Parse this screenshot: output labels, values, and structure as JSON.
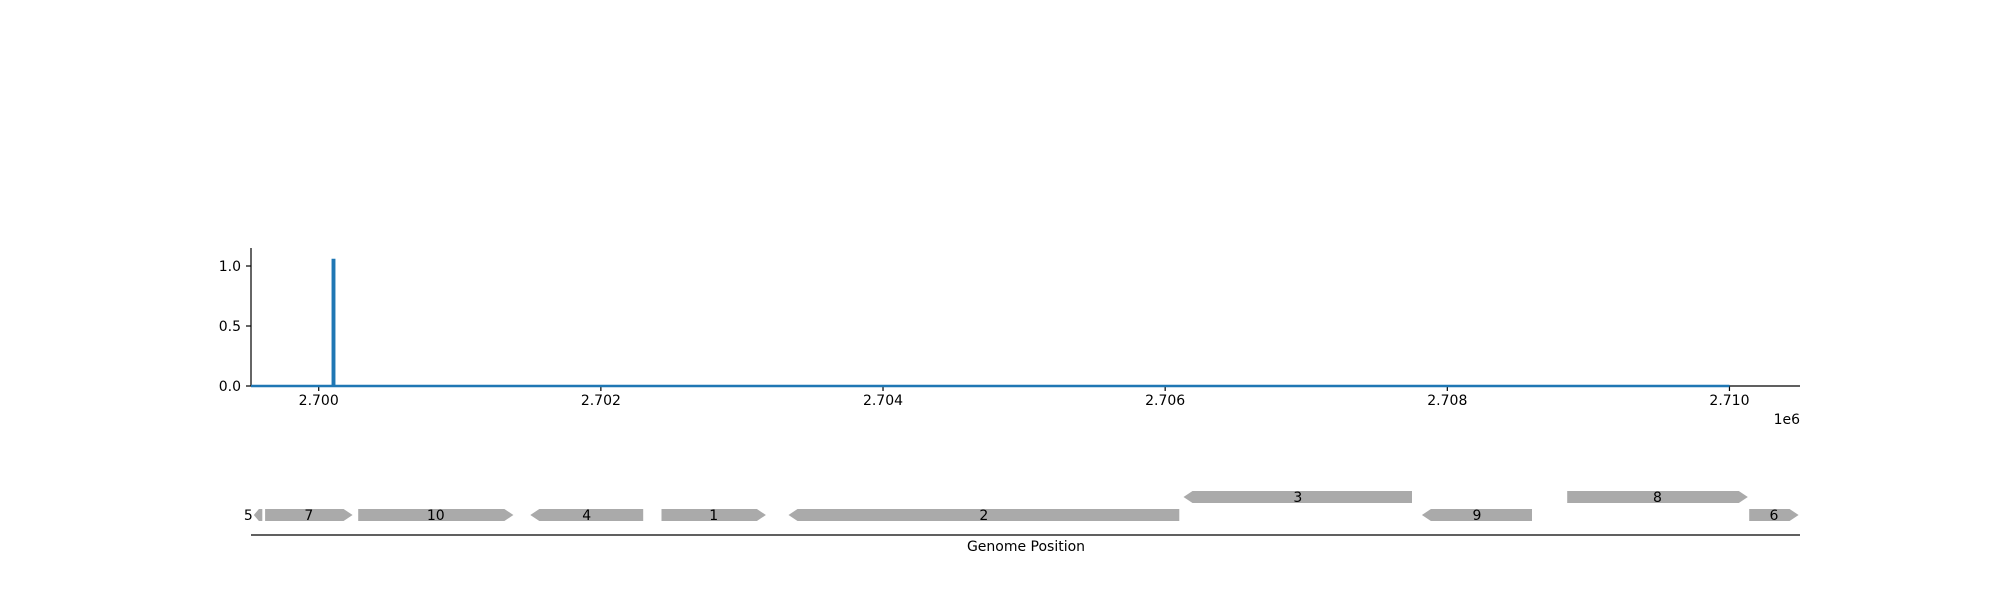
{
  "chart_data": [
    {
      "type": "line",
      "x_offset_label": "1e6",
      "xlim": [
        2699520,
        2710500
      ],
      "ylim": [
        0,
        1.15
      ],
      "x_ticks": [
        {
          "value": 2700000,
          "label": "2.700"
        },
        {
          "value": 2702000,
          "label": "2.702"
        },
        {
          "value": 2704000,
          "label": "2.704"
        },
        {
          "value": 2706000,
          "label": "2.706"
        },
        {
          "value": 2708000,
          "label": "2.708"
        },
        {
          "value": 2710000,
          "label": "2.710"
        }
      ],
      "y_ticks": [
        {
          "value": 0.0,
          "label": "0.0"
        },
        {
          "value": 0.5,
          "label": "0.5"
        },
        {
          "value": 1.0,
          "label": "1.0"
        }
      ],
      "series": [
        {
          "color": "#1f77b4",
          "x": [
            2699520,
            2700100,
            2700100,
            2700110,
            2700110,
            2710000
          ],
          "y": [
            0,
            0,
            1.05,
            1.05,
            0,
            0
          ]
        }
      ],
      "grid": false
    },
    {
      "type": "gene-track",
      "xlabel": "Genome Position",
      "xlim": [
        2699520,
        2710500
      ],
      "gene_color": "#aaaaaa",
      "genes": [
        {
          "label": "5",
          "start": 2699540,
          "end": 2699600,
          "strand": "-",
          "row": 0
        },
        {
          "label": "7",
          "start": 2699620,
          "end": 2700240,
          "strand": "+",
          "row": 0
        },
        {
          "label": "10",
          "start": 2700280,
          "end": 2701380,
          "strand": "+",
          "row": 0
        },
        {
          "label": "4",
          "start": 2701500,
          "end": 2702300,
          "strand": "-",
          "row": 0
        },
        {
          "label": "1",
          "start": 2702430,
          "end": 2703170,
          "strand": "+",
          "row": 0
        },
        {
          "label": "2",
          "start": 2703330,
          "end": 2706100,
          "strand": "-",
          "row": 0
        },
        {
          "label": "3",
          "start": 2706130,
          "end": 2707750,
          "strand": "-",
          "row": 1
        },
        {
          "label": "9",
          "start": 2707820,
          "end": 2708600,
          "strand": "-",
          "row": 0
        },
        {
          "label": "8",
          "start": 2708850,
          "end": 2710130,
          "strand": "+",
          "row": 1
        },
        {
          "label": "6",
          "start": 2710140,
          "end": 2710490,
          "strand": "+",
          "row": 0
        }
      ]
    }
  ]
}
